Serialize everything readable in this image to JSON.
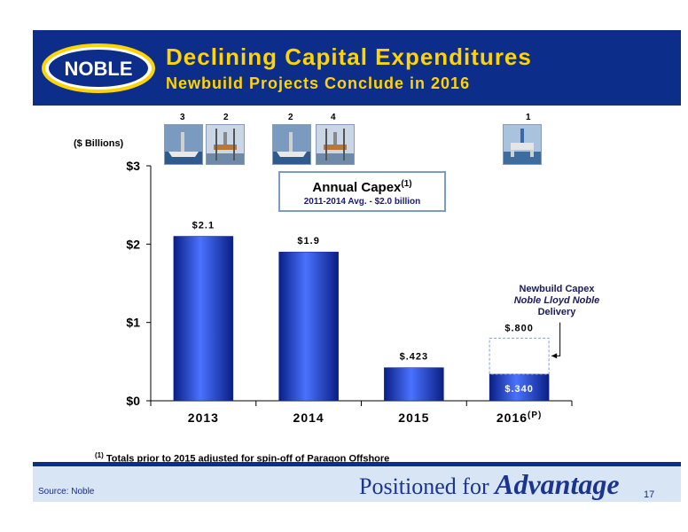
{
  "header": {
    "title": "Declining Capital Expenditures",
    "subtitle": "Newbuild Projects Conclude in 2016",
    "logo_text": "NOBLE"
  },
  "thumbnails": {
    "labels": [
      "3",
      "2",
      "2",
      "4",
      "1"
    ]
  },
  "units_label": "($ Billions)",
  "capex_box": {
    "title": "Annual Capex",
    "title_sup": "(1)",
    "subtitle": "2011-2014 Avg. - $2.0 billion"
  },
  "newbuild_note": {
    "line1": "Newbuild Capex",
    "line2": "Noble Lloyd Noble",
    "line3": "Delivery"
  },
  "chart_data": {
    "type": "bar",
    "categories": [
      "2013",
      "2014",
      "2015",
      "2016"
    ],
    "category_suffix": [
      "",
      "",
      "",
      "(P)"
    ],
    "values": [
      2.1,
      1.9,
      0.423,
      0.34
    ],
    "value_labels": [
      "$2.1",
      "$1.9",
      "$.423",
      "$.340"
    ],
    "outline_value": 0.8,
    "outline_label": "$.800",
    "ylim": [
      0,
      3
    ],
    "yticks": [
      0,
      1,
      2,
      3
    ],
    "ytick_labels": [
      "$0",
      "$1",
      "$2",
      "$3"
    ],
    "bar_color": "#1a3fd0",
    "bar_dark": "#0a1f85",
    "bar_light": "#4a72ff",
    "outline_color": "#7fa0d0"
  },
  "footnote": {
    "marker": "(1)",
    "text": "Totals prior to 2015 adjusted for spin-off of Paragon Offshore"
  },
  "footer": {
    "source": "Source: Noble",
    "tagline_part1": "Positioned for",
    "tagline_part2": "Advantage",
    "page_number": "17"
  },
  "colors": {
    "header_bg": "#0d2d8a",
    "header_text": "#ffd400",
    "footer_bg": "#d7e5f5"
  }
}
